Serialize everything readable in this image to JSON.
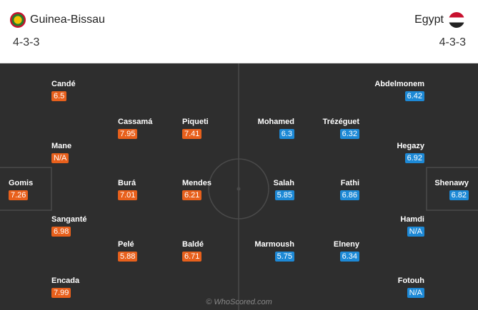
{
  "home": {
    "name": "Guinea-Bissau",
    "formation": "4-3-3",
    "players": [
      {
        "name": "Candé",
        "rating": "6.5"
      },
      {
        "name": "Cassamá",
        "rating": "7.95"
      },
      {
        "name": "Piqueti",
        "rating": "7.41"
      },
      {
        "name": "Mane",
        "rating": "N/A"
      },
      {
        "name": "Gomis",
        "rating": "7.26"
      },
      {
        "name": "Burá",
        "rating": "7.01"
      },
      {
        "name": "Mendes",
        "rating": "6.21"
      },
      {
        "name": "Sanganté",
        "rating": "6.98"
      },
      {
        "name": "Pelé",
        "rating": "5.88"
      },
      {
        "name": "Baldé",
        "rating": "6.71"
      },
      {
        "name": "Encada",
        "rating": "7.99"
      }
    ]
  },
  "away": {
    "name": "Egypt",
    "formation": "4-3-3",
    "players": [
      {
        "name": "Abdelmonem",
        "rating": "6.42"
      },
      {
        "name": "Mohamed",
        "rating": "6.3"
      },
      {
        "name": "Trézéguet",
        "rating": "6.32"
      },
      {
        "name": "Hegazy",
        "rating": "6.92"
      },
      {
        "name": "Shenawy",
        "rating": "6.82"
      },
      {
        "name": "Salah",
        "rating": "5.85"
      },
      {
        "name": "Fathi",
        "rating": "6.86"
      },
      {
        "name": "Hamdi",
        "rating": "N/A"
      },
      {
        "name": "Marmoush",
        "rating": "5.75"
      },
      {
        "name": "Elneny",
        "rating": "6.34"
      },
      {
        "name": "Fotouh",
        "rating": "N/A"
      }
    ]
  },
  "watermark": "© WhoScored.com"
}
